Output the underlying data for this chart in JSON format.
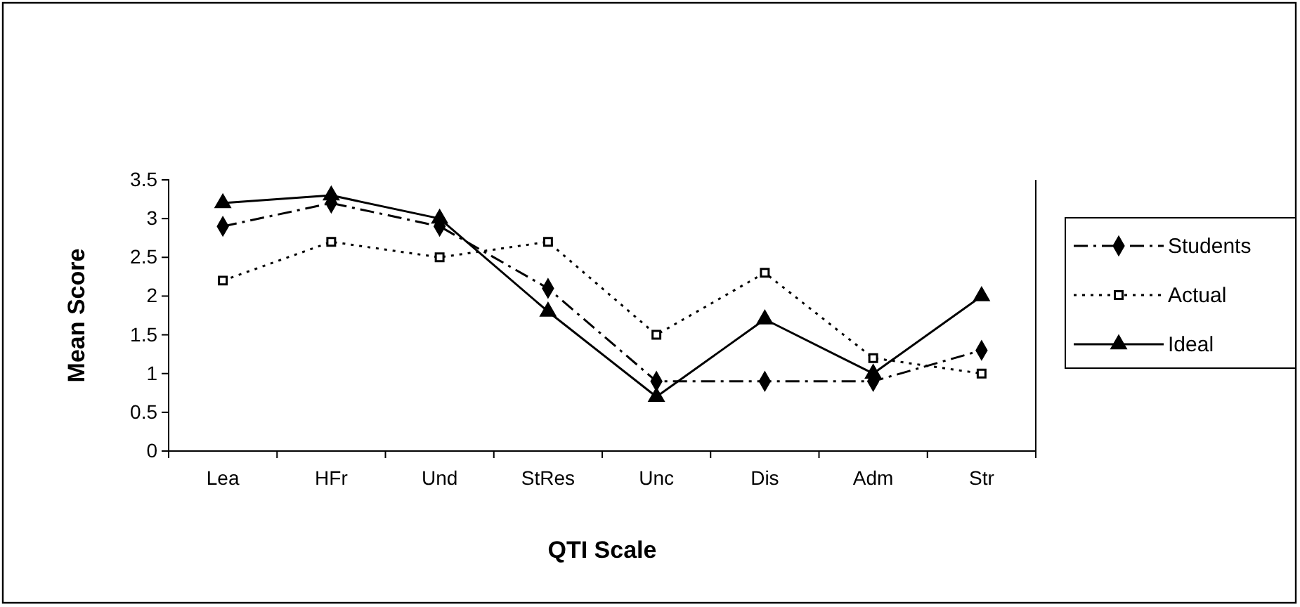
{
  "chart_data": {
    "type": "line",
    "xlabel": "QTI Scale",
    "ylabel": "Mean Score",
    "categories": [
      "Lea",
      "HFr",
      "Und",
      "StRes",
      "Unc",
      "Dis",
      "Adm",
      "Str"
    ],
    "series": [
      {
        "name": "Students",
        "color": "#000000",
        "marker": "diamond",
        "line_style": "dashdot",
        "values": [
          2.9,
          3.2,
          2.9,
          2.1,
          0.9,
          0.9,
          0.9,
          1.3
        ]
      },
      {
        "name": "Actual",
        "color": "#000000",
        "marker": "square",
        "line_style": "dotted",
        "values": [
          2.2,
          2.7,
          2.5,
          2.7,
          1.5,
          2.3,
          1.2,
          1.0
        ]
      },
      {
        "name": "Ideal",
        "color": "#000000",
        "marker": "triangle",
        "line_style": "solid",
        "values": [
          3.2,
          3.3,
          3.0,
          1.8,
          0.7,
          1.7,
          1.0,
          2.0
        ]
      }
    ],
    "ylim": [
      0,
      3.5
    ],
    "yticks": [
      0,
      0.5,
      1,
      1.5,
      2,
      2.5,
      3,
      3.5
    ],
    "grid": false,
    "legend": "right"
  }
}
